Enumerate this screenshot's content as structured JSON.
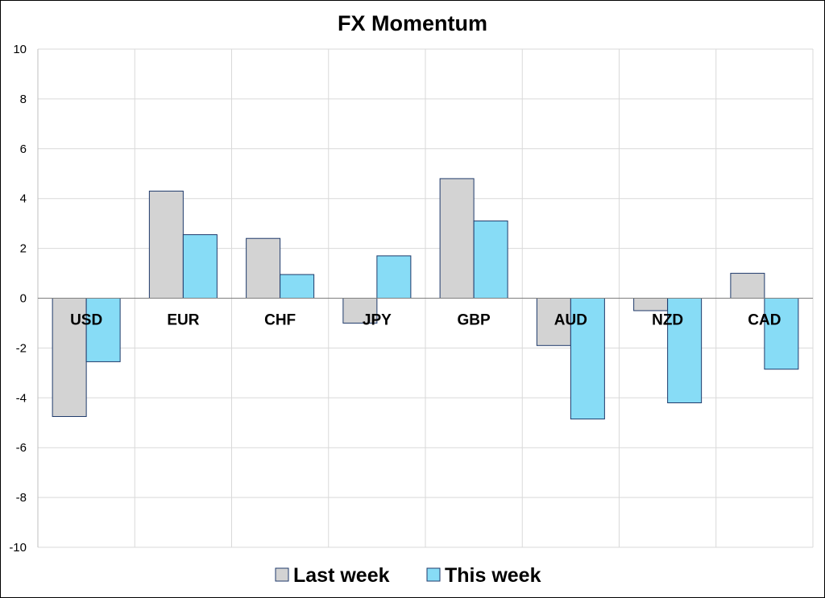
{
  "chart_data": {
    "type": "bar",
    "title": "FX Momentum",
    "categories": [
      "USD",
      "EUR",
      "CHF",
      "JPY",
      "GBP",
      "AUD",
      "NZD",
      "CAD"
    ],
    "series": [
      {
        "name": "Last week",
        "values": [
          -4.75,
          4.3,
          2.4,
          -1.0,
          4.8,
          -1.9,
          -0.5,
          1.0
        ],
        "color": "#d3d3d3"
      },
      {
        "name": "This week",
        "values": [
          -2.55,
          2.55,
          0.95,
          1.7,
          3.1,
          -4.85,
          -4.2,
          -2.85
        ],
        "color": "#87dcf6"
      }
    ],
    "ylim": [
      -10,
      10
    ],
    "yticks": [
      10,
      8,
      6,
      4,
      2,
      0,
      -2,
      -4,
      -6,
      -8,
      -10
    ],
    "grid": true,
    "legend": "bottom",
    "bar_stroke": "#1f3a6b"
  }
}
